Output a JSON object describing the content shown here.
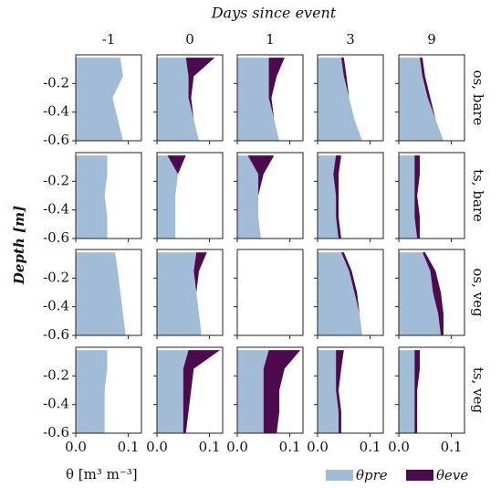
{
  "chart_data": {
    "type": "area_grid",
    "title": "Days since event",
    "col_labels": [
      "-1",
      "0",
      "1",
      "3",
      "9"
    ],
    "row_labels": [
      "os, bare",
      "ts, bare",
      "os, veg",
      "ts, veg"
    ],
    "x_label": "θ [m³ m⁻³]",
    "y_label": "Depth [m]",
    "xlim": [
      0,
      0.125
    ],
    "xticks": [
      {
        "value": 0,
        "label": "0.0"
      },
      {
        "value": 0.1,
        "label": "0.1"
      }
    ],
    "ylim": [
      -0.6,
      0
    ],
    "yticks": [
      -0.2,
      -0.4,
      -0.6
    ],
    "depths": [
      -0.02,
      -0.15,
      -0.3,
      -0.45,
      -0.6
    ],
    "series": [
      {
        "name": "θpre",
        "color": "#a2bcd8"
      },
      {
        "name": "θeve",
        "color": "#4e0a4e"
      }
    ],
    "panels": [
      [
        {
          "pre": [
            0.085,
            0.09,
            0.07,
            0.08,
            0.09
          ],
          "eve": null
        },
        {
          "pre": [
            0.055,
            0.06,
            0.06,
            0.07,
            0.08
          ],
          "eve": [
            0.11,
            0.07,
            0.065,
            0.07,
            0.08
          ]
        },
        {
          "pre": [
            0.06,
            0.06,
            0.06,
            0.07,
            0.08
          ],
          "eve": [
            0.09,
            0.075,
            0.065,
            0.07,
            0.08
          ]
        },
        {
          "pre": [
            0.045,
            0.05,
            0.06,
            0.07,
            0.085
          ],
          "eve": [
            0.05,
            0.055,
            0.06,
            0.07,
            0.085
          ]
        },
        {
          "pre": [
            0.04,
            0.045,
            0.055,
            0.07,
            0.085
          ],
          "eve": [
            0.045,
            0.05,
            0.06,
            0.07,
            0.085
          ]
        }
      ],
      [
        {
          "pre": [
            0.06,
            0.06,
            0.055,
            0.06,
            0.06
          ],
          "eve": null
        },
        {
          "pre": [
            0.02,
            0.04,
            0.035,
            0.035,
            0.035
          ],
          "eve": [
            0.055,
            0.04,
            0.035,
            0.035,
            0.035
          ]
        },
        {
          "pre": [
            0.02,
            0.04,
            0.04,
            0.04,
            0.045
          ],
          "eve": [
            0.07,
            0.05,
            0.04,
            0.04,
            0.045
          ]
        },
        {
          "pre": [
            0.035,
            0.03,
            0.035,
            0.035,
            0.04
          ],
          "eve": [
            0.045,
            0.04,
            0.04,
            0.04,
            0.045
          ]
        },
        {
          "pre": [
            0.03,
            0.03,
            0.03,
            0.03,
            0.035
          ],
          "eve": [
            0.04,
            0.04,
            0.035,
            0.04,
            0.04
          ]
        }
      ],
      [
        {
          "pre": [
            0.075,
            0.08,
            0.085,
            0.09,
            0.095
          ],
          "eve": null
        },
        {
          "pre": [
            0.075,
            0.07,
            0.075,
            0.08,
            0.085
          ],
          "eve": [
            0.095,
            0.08,
            0.075,
            0.08,
            0.085
          ]
        },
        {
          "pre": null,
          "eve": null
        },
        {
          "pre": [
            0.045,
            0.06,
            0.07,
            0.08,
            0.085
          ],
          "eve": [
            0.05,
            0.065,
            0.075,
            0.08,
            0.085
          ]
        },
        {
          "pre": [
            0.045,
            0.06,
            0.065,
            0.075,
            0.08
          ],
          "eve": [
            0.05,
            0.07,
            0.08,
            0.085,
            0.085
          ]
        }
      ],
      [
        {
          "pre": [
            0.06,
            0.06,
            0.055,
            0.055,
            0.055
          ],
          "eve": null
        },
        {
          "pre": [
            0.06,
            0.05,
            0.05,
            0.05,
            0.05
          ],
          "eve": [
            0.12,
            0.07,
            0.065,
            0.06,
            0.055
          ]
        },
        {
          "pre": [
            0.06,
            0.05,
            0.05,
            0.05,
            0.05
          ],
          "eve": [
            0.12,
            0.09,
            0.08,
            0.08,
            0.075
          ]
        },
        {
          "pre": [
            0.035,
            0.035,
            0.035,
            0.04,
            0.04
          ],
          "eve": [
            0.05,
            0.045,
            0.04,
            0.045,
            0.045
          ]
        },
        {
          "pre": [
            0.03,
            0.03,
            0.03,
            0.03,
            0.03
          ],
          "eve": [
            0.04,
            0.04,
            0.035,
            0.035,
            0.035
          ]
        }
      ]
    ]
  }
}
